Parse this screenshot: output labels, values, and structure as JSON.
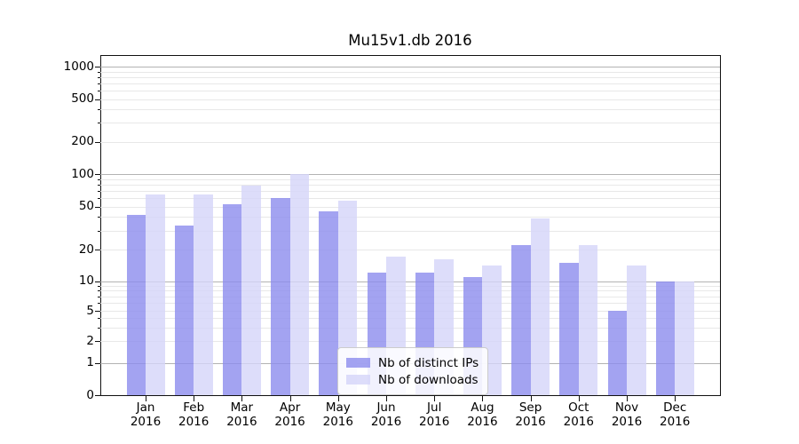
{
  "chart": {
    "title": "Mu15v1.db 2016"
  },
  "chart_data": {
    "type": "bar",
    "title": "Mu15v1.db 2016",
    "categories": [
      "Jan 2016",
      "Feb 2016",
      "Mar 2016",
      "Apr 2016",
      "May 2016",
      "Jun 2016",
      "Jul 2016",
      "Aug 2016",
      "Sep 2016",
      "Oct 2016",
      "Nov 2016",
      "Dec 2016"
    ],
    "month_labels": [
      "Jan",
      "Feb",
      "Mar",
      "Apr",
      "May",
      "Jun",
      "Jul",
      "Aug",
      "Sep",
      "Oct",
      "Nov",
      "Dec"
    ],
    "year_label": "2016",
    "series": [
      {
        "name": "Nb of distinct IPs",
        "color": "#a3a3f1",
        "fill": "rgba(140,140,238,0.8)",
        "values": [
          42,
          33,
          52,
          60,
          45,
          12,
          12,
          11,
          22,
          15,
          5,
          10
        ]
      },
      {
        "name": "Nb of downloads",
        "color": "#dcdcfa",
        "fill": "rgba(212,212,249,0.8)",
        "values": [
          65,
          65,
          78,
          100,
          57,
          17,
          16,
          14,
          39,
          22,
          14,
          10
        ]
      }
    ],
    "xlabel": "",
    "ylabel": "",
    "yscale": "symlog",
    "y_ticks": [
      0,
      1,
      2,
      5,
      10,
      20,
      50,
      100,
      200,
      500,
      1000
    ],
    "ylim": [
      0,
      1280
    ],
    "grid": {
      "major_ticks": [
        1,
        10,
        100,
        1000
      ],
      "minor_ticks": [
        2,
        3,
        4,
        5,
        6,
        7,
        8,
        9,
        20,
        30,
        40,
        50,
        60,
        70,
        80,
        90,
        200,
        300,
        400,
        500,
        600,
        700,
        800,
        900
      ],
      "major_color": "#b3b3b3",
      "minor_color": "#e8e8e8"
    },
    "legend": {
      "entries": [
        "Nb of distinct IPs",
        "Nb of downloads"
      ],
      "position": "lower-center"
    }
  }
}
